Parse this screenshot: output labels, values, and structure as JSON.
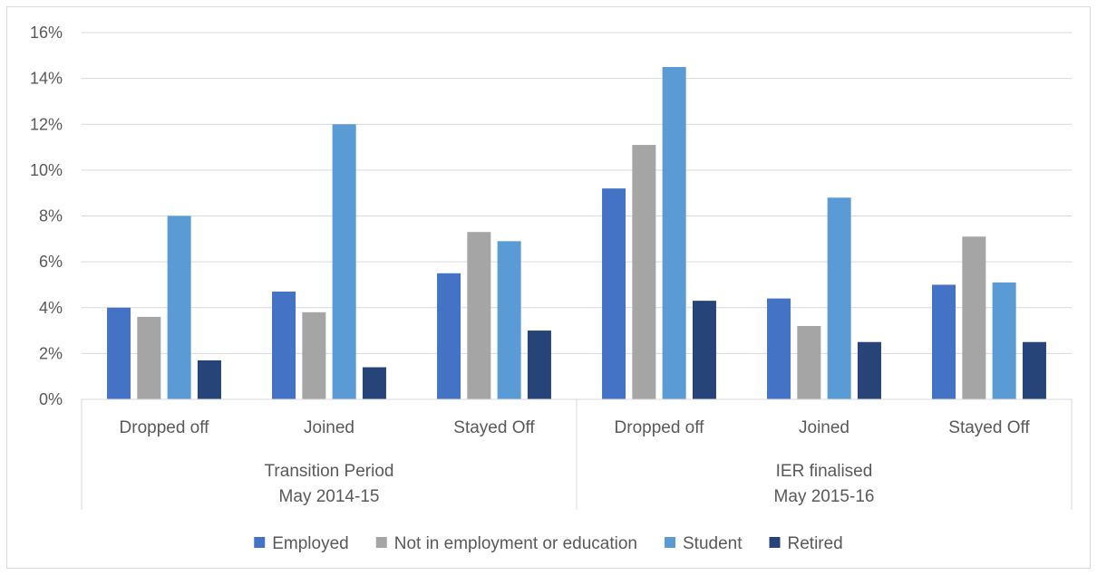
{
  "chart_data": {
    "type": "bar",
    "title": "",
    "xlabel": "",
    "ylabel": "",
    "ylim": [
      0,
      0.16
    ],
    "yticks": [
      0,
      0.02,
      0.04,
      0.06,
      0.08,
      0.1,
      0.12,
      0.14,
      0.16
    ],
    "ytick_labels": [
      "0%",
      "2%",
      "4%",
      "6%",
      "8%",
      "10%",
      "12%",
      "14%",
      "16%"
    ],
    "grid": true,
    "legend_position": "bottom",
    "groups": [
      {
        "label_line1": "Transition Period",
        "label_line2": "May 2014-15",
        "categories": [
          "Dropped off",
          "Joined",
          "Stayed Off"
        ]
      },
      {
        "label_line1": "IER finalised",
        "label_line2": "May 2015-16",
        "categories": [
          "Dropped off",
          "Joined",
          "Stayed Off"
        ]
      }
    ],
    "categories": [
      "Dropped off",
      "Joined",
      "Stayed Off",
      "Dropped off",
      "Joined",
      "Stayed Off"
    ],
    "series": [
      {
        "name": "Employed",
        "color": "#4472C4",
        "values": [
          0.04,
          0.047,
          0.055,
          0.092,
          0.044,
          0.05
        ]
      },
      {
        "name": "Not in employment or education",
        "color": "#A5A5A5",
        "values": [
          0.036,
          0.038,
          0.073,
          0.111,
          0.032,
          0.071
        ]
      },
      {
        "name": "Student",
        "color": "#5B9BD5",
        "values": [
          0.08,
          0.12,
          0.069,
          0.145,
          0.088,
          0.051
        ]
      },
      {
        "name": "Retired",
        "color": "#264478",
        "values": [
          0.017,
          0.014,
          0.03,
          0.043,
          0.025,
          0.025
        ]
      }
    ]
  }
}
